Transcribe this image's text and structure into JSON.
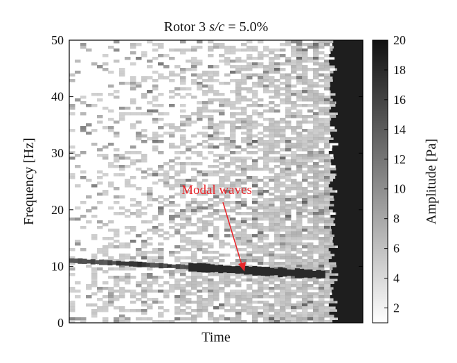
{
  "chart_data": {
    "type": "heatmap",
    "title": "Rotor 3 s/c = 5.0%",
    "title_parts": {
      "prefix": "Rotor 3 ",
      "italic": "s/c",
      "suffix": " = 5.0%"
    },
    "xlabel": "Time",
    "ylabel": "Frequency [Hz]",
    "ylim": [
      0,
      50
    ],
    "yticks": [
      0,
      10,
      20,
      30,
      40,
      50
    ],
    "colorbar": {
      "label": "Amplitude [Pa]",
      "range": [
        1,
        20
      ],
      "ticks": [
        2,
        4,
        6,
        8,
        10,
        12,
        14,
        16,
        18,
        20
      ],
      "colormap": "white-to-black",
      "low_color": "#ffffff",
      "high_color": "#111111"
    },
    "annotations": [
      {
        "text": "Modal waves",
        "color": "#e8262b",
        "points_to": {
          "time_fraction": 0.6,
          "frequency": 9.3
        }
      }
    ],
    "features": {
      "modal_wave_band": {
        "time_fraction_start": 0.0,
        "time_fraction_end": 0.87,
        "frequency_start": 11.0,
        "frequency_end": 8.5,
        "amplitude": 18
      },
      "broadband_onset_time_fraction": 0.9,
      "broadband_amplitude": 19
    }
  }
}
